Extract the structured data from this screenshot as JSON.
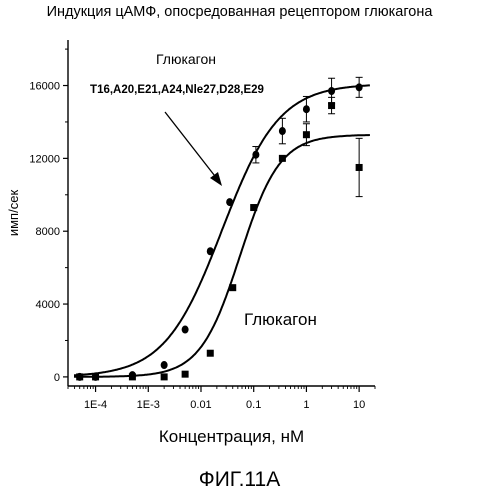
{
  "figure_label": "ФИГ.11А",
  "chart_data": {
    "type": "scatter",
    "title": "Индукция цАМФ, опосредованная рецептором глюкагона",
    "xlabel": "Концентрация, нМ",
    "ylabel": "имп/сек",
    "xscale": "log",
    "xlim": [
      3e-05,
      20
    ],
    "ylim": [
      -500,
      18500
    ],
    "x_ticks": [
      {
        "value": 0.0001,
        "label": "1E-4"
      },
      {
        "value": 0.001,
        "label": "1E-3"
      },
      {
        "value": 0.01,
        "label": "0.01"
      },
      {
        "value": 0.1,
        "label": "0.1"
      },
      {
        "value": 1,
        "label": "1"
      },
      {
        "value": 10,
        "label": "10"
      }
    ],
    "y_ticks": [
      {
        "value": 0,
        "label": "0"
      },
      {
        "value": 4000,
        "label": "4000"
      },
      {
        "value": 8000,
        "label": "8000"
      },
      {
        "value": 12000,
        "label": "12000"
      },
      {
        "value": 16000,
        "label": "16000"
      }
    ],
    "grid": false,
    "series": [
      {
        "name": "Глюкагон T16,A20,E21,A24,Nle27,D28,E29",
        "label_line1": "Глюкагон",
        "label_line2": "T16,A20,E21,A24,Nle27,D28,E29",
        "marker": "circle",
        "color": "#000000",
        "x": [
          5e-05,
          0.0001,
          0.0005,
          0.002,
          0.005,
          0.015,
          0.035,
          0.11,
          0.35,
          1.0,
          3.0,
          10.0
        ],
        "y": [
          0,
          0,
          100,
          650,
          2600,
          6900,
          9600,
          12200,
          13500,
          14700,
          15700,
          15900
        ],
        "err": [
          0,
          0,
          0,
          0,
          0,
          0,
          0,
          450,
          700,
          700,
          700,
          550
        ],
        "fit": {
          "bottom": 0,
          "top": 16100,
          "ec50": 0.025,
          "hill": 0.8
        }
      },
      {
        "name": "Глюкагон",
        "label_line1": "Глюкагон",
        "marker": "square",
        "color": "#000000",
        "x": [
          5e-05,
          0.0001,
          0.0005,
          0.002,
          0.005,
          0.015,
          0.04,
          0.1,
          0.35,
          1.0,
          3.0,
          10.0
        ],
        "y": [
          0,
          0,
          0,
          0,
          150,
          1300,
          4900,
          9300,
          12000,
          13300,
          14900,
          11500
        ],
        "err": [
          0,
          0,
          0,
          0,
          0,
          0,
          0,
          0,
          0,
          600,
          450,
          1600
        ],
        "fit": {
          "bottom": 0,
          "top": 13300,
          "ec50": 0.055,
          "hill": 1.15
        }
      }
    ]
  }
}
